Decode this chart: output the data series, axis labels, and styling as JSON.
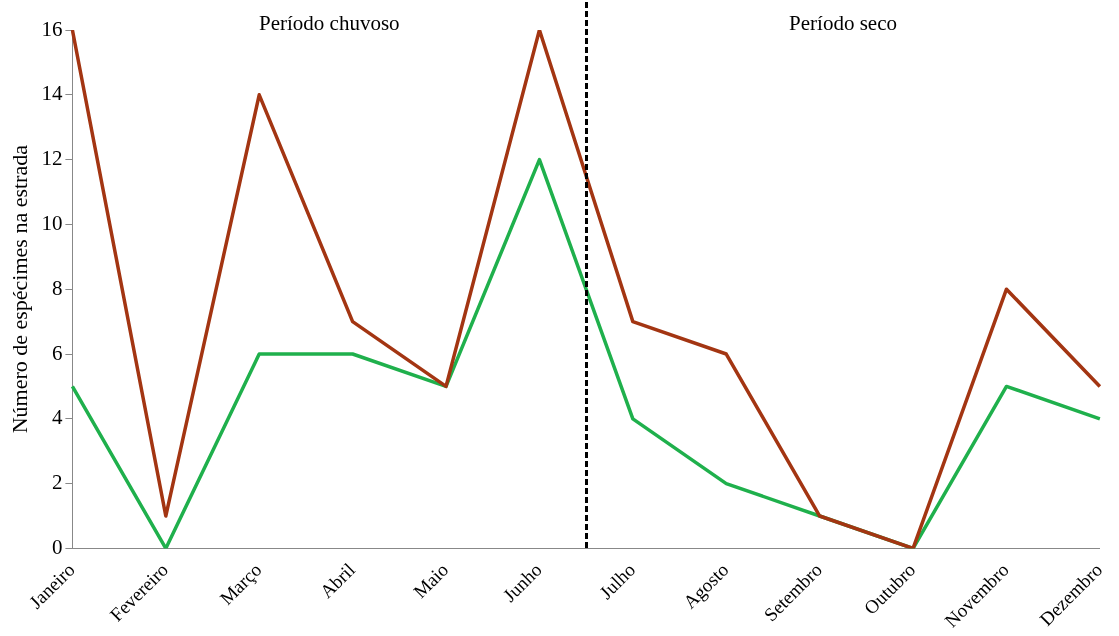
{
  "chart_data": {
    "type": "line",
    "ylabel": "Número de espécimes na estrada",
    "categories": [
      "Janeiro",
      "Fevereiro",
      "Março",
      "Abril",
      "Maio",
      "Junho",
      "Julho",
      "Agosto",
      "Setembro",
      "Outubro",
      "Novembro",
      "Dezembro"
    ],
    "series": [
      {
        "color": "#a33512",
        "values": [
          16,
          1,
          14,
          7,
          5,
          16,
          7,
          6,
          1,
          0,
          8,
          5
        ]
      },
      {
        "color": "#1fb04c",
        "values": [
          5,
          0,
          6,
          6,
          5,
          12,
          4,
          2,
          1,
          0,
          5,
          4
        ]
      }
    ],
    "ylim": [
      0,
      16
    ],
    "yticks": [
      0,
      2,
      4,
      6,
      8,
      10,
      12,
      14,
      16
    ],
    "grid": false,
    "legend": false,
    "marker": "none",
    "line_style": "solid",
    "annotations": [
      "Período chuvoso",
      "Período seco"
    ]
  }
}
